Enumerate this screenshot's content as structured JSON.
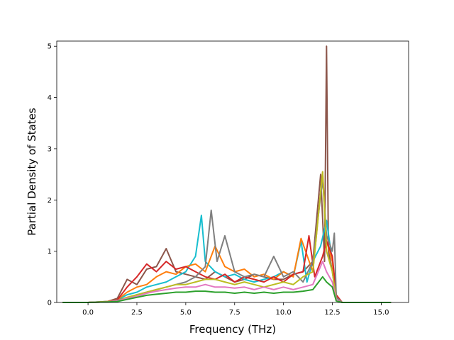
{
  "chart_data": {
    "type": "line",
    "title": "",
    "xlabel": "Frequency (THz)",
    "ylabel": "Partial Density of States",
    "xlim": [
      -1.6,
      16.4
    ],
    "ylim": [
      0,
      5.1
    ],
    "x_ticks": [
      0.0,
      2.5,
      5.0,
      7.5,
      10.0,
      12.5,
      15.0
    ],
    "x_tick_labels": [
      "0.0",
      "2.5",
      "5.0",
      "7.5",
      "10.0",
      "12.5",
      "15.0"
    ],
    "y_ticks": [
      0,
      1,
      2,
      3,
      4,
      5
    ],
    "y_tick_labels": [
      "0",
      "1",
      "2",
      "3",
      "4",
      "5"
    ],
    "grid": false,
    "legend": "none",
    "series_colors": [
      "#17becf",
      "#ff7f0e",
      "#d62728",
      "#8c564b",
      "#e377c2",
      "#7f7f7f",
      "#bcbd22",
      "#2ca02c"
    ],
    "series": [
      {
        "color": "#8c564b",
        "x": [
          -1.3,
          0.0,
          1.0,
          1.5,
          2.0,
          2.5,
          3.0,
          3.5,
          4.0,
          4.5,
          5.0,
          5.5,
          6.0,
          6.5,
          7.0,
          7.5,
          8.0,
          8.5,
          9.0,
          9.5,
          10.0,
          10.5,
          11.0,
          11.5,
          11.9,
          12.1,
          12.2,
          12.3,
          12.5,
          12.7,
          13.0,
          15.5
        ],
        "y": [
          0,
          0,
          0.02,
          0.08,
          0.45,
          0.35,
          0.65,
          0.7,
          1.05,
          0.6,
          0.55,
          0.5,
          0.45,
          0.6,
          0.5,
          0.4,
          0.45,
          0.55,
          0.5,
          0.45,
          0.45,
          0.55,
          0.6,
          0.8,
          2.5,
          0.8,
          5.0,
          1.0,
          0.6,
          0.1,
          0,
          0
        ]
      },
      {
        "color": "#17becf",
        "x": [
          -1.3,
          0.0,
          1.0,
          1.5,
          2.0,
          2.5,
          3.0,
          3.5,
          4.0,
          4.5,
          5.0,
          5.5,
          5.8,
          6.0,
          6.5,
          7.0,
          7.5,
          8.0,
          8.5,
          9.0,
          9.5,
          10.0,
          10.5,
          10.9,
          11.2,
          11.5,
          11.9,
          12.2,
          12.5,
          12.7,
          13.0,
          15.5
        ],
        "y": [
          0,
          0,
          0.02,
          0.05,
          0.15,
          0.2,
          0.3,
          0.35,
          0.4,
          0.5,
          0.6,
          0.9,
          1.7,
          0.8,
          0.6,
          0.5,
          0.55,
          0.45,
          0.4,
          0.45,
          0.5,
          0.6,
          0.5,
          1.2,
          0.4,
          0.8,
          1.1,
          1.6,
          0.8,
          0.1,
          0,
          0
        ]
      },
      {
        "color": "#ff7f0e",
        "x": [
          -1.3,
          0.0,
          1.0,
          1.5,
          2.0,
          2.5,
          3.0,
          3.5,
          4.0,
          4.5,
          5.0,
          5.5,
          6.0,
          6.5,
          7.0,
          7.5,
          8.0,
          8.5,
          9.0,
          9.5,
          10.0,
          10.5,
          10.9,
          11.5,
          12.0,
          12.2,
          12.5,
          12.7,
          13.0,
          15.5
        ],
        "y": [
          0,
          0,
          0.02,
          0.05,
          0.2,
          0.3,
          0.35,
          0.5,
          0.6,
          0.55,
          0.7,
          0.75,
          0.6,
          1.1,
          0.7,
          0.6,
          0.65,
          0.5,
          0.55,
          0.45,
          0.6,
          0.5,
          1.25,
          0.6,
          2.55,
          1.2,
          0.8,
          0.1,
          0,
          0
        ]
      },
      {
        "color": "#d62728",
        "x": [
          -1.3,
          0.0,
          1.0,
          1.5,
          2.0,
          2.5,
          3.0,
          3.5,
          4.0,
          4.5,
          5.0,
          5.5,
          6.0,
          6.5,
          7.0,
          7.5,
          8.0,
          8.5,
          9.0,
          9.5,
          10.0,
          10.5,
          11.0,
          11.3,
          11.6,
          12.0,
          12.2,
          12.5,
          12.7,
          13.0,
          15.5
        ],
        "y": [
          0,
          0,
          0.01,
          0.05,
          0.3,
          0.5,
          0.75,
          0.6,
          0.8,
          0.65,
          0.7,
          0.6,
          0.5,
          0.45,
          0.55,
          0.4,
          0.5,
          0.45,
          0.4,
          0.5,
          0.4,
          0.55,
          0.6,
          1.3,
          0.5,
          0.9,
          1.2,
          0.9,
          0.15,
          0,
          0
        ]
      },
      {
        "color": "#7f7f7f",
        "x": [
          -1.3,
          0.0,
          1.0,
          1.5,
          2.0,
          2.5,
          3.0,
          3.5,
          4.0,
          4.5,
          5.0,
          5.5,
          6.0,
          6.3,
          6.6,
          7.0,
          7.5,
          8.0,
          8.5,
          9.0,
          9.5,
          10.0,
          10.5,
          11.0,
          11.5,
          12.0,
          12.2,
          12.5,
          12.6,
          12.7,
          13.0,
          15.5
        ],
        "y": [
          0,
          0,
          0.01,
          0.04,
          0.1,
          0.15,
          0.2,
          0.25,
          0.3,
          0.35,
          0.4,
          0.5,
          0.7,
          1.8,
          0.8,
          1.3,
          0.6,
          0.5,
          0.55,
          0.5,
          0.9,
          0.5,
          0.6,
          0.4,
          0.8,
          2.4,
          1.3,
          1.0,
          1.35,
          0.1,
          0,
          0
        ]
      },
      {
        "color": "#bcbd22",
        "x": [
          -1.3,
          0.0,
          1.0,
          1.5,
          2.0,
          2.5,
          3.0,
          3.5,
          4.0,
          4.5,
          5.0,
          5.5,
          6.0,
          6.5,
          7.0,
          7.5,
          8.0,
          8.5,
          9.0,
          9.5,
          10.0,
          10.5,
          11.0,
          11.5,
          12.0,
          12.2,
          12.5,
          12.7,
          13.0,
          15.5
        ],
        "y": [
          0,
          0,
          0.01,
          0.03,
          0.1,
          0.15,
          0.2,
          0.25,
          0.3,
          0.35,
          0.35,
          0.4,
          0.45,
          0.45,
          0.4,
          0.35,
          0.4,
          0.35,
          0.3,
          0.35,
          0.4,
          0.35,
          0.5,
          0.6,
          2.55,
          1.0,
          0.6,
          0.05,
          0,
          0
        ]
      },
      {
        "color": "#e377c2",
        "x": [
          -1.3,
          0.0,
          1.0,
          1.5,
          2.0,
          2.5,
          3.0,
          3.5,
          4.0,
          4.5,
          5.0,
          5.5,
          6.0,
          6.5,
          7.0,
          7.5,
          8.0,
          8.5,
          9.0,
          9.5,
          10.0,
          10.5,
          11.0,
          11.5,
          12.0,
          12.2,
          12.5,
          12.7,
          13.0,
          15.5
        ],
        "y": [
          0,
          0,
          0.01,
          0.03,
          0.08,
          0.12,
          0.18,
          0.22,
          0.25,
          0.28,
          0.3,
          0.3,
          0.35,
          0.3,
          0.3,
          0.28,
          0.3,
          0.25,
          0.3,
          0.25,
          0.3,
          0.25,
          0.3,
          0.35,
          0.8,
          0.6,
          0.4,
          0.05,
          0,
          0
        ]
      },
      {
        "color": "#2ca02c",
        "x": [
          -1.3,
          0.0,
          1.0,
          1.5,
          2.0,
          2.5,
          3.0,
          3.5,
          4.0,
          4.5,
          5.0,
          5.5,
          6.0,
          6.5,
          7.0,
          7.5,
          8.0,
          8.5,
          9.0,
          9.5,
          10.0,
          10.5,
          11.0,
          11.5,
          12.0,
          12.2,
          12.5,
          12.7,
          13.0,
          15.5
        ],
        "y": [
          0,
          0,
          0.01,
          0.02,
          0.06,
          0.1,
          0.14,
          0.16,
          0.18,
          0.2,
          0.2,
          0.22,
          0.22,
          0.2,
          0.2,
          0.18,
          0.2,
          0.18,
          0.2,
          0.18,
          0.2,
          0.2,
          0.22,
          0.25,
          0.5,
          0.4,
          0.3,
          0.03,
          0,
          0
        ]
      }
    ]
  }
}
